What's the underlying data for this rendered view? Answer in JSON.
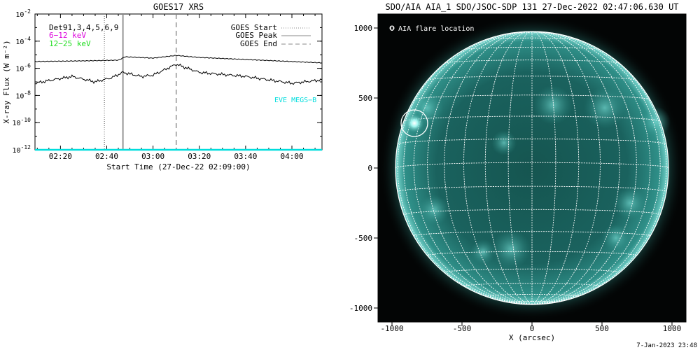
{
  "chart_data": [
    {
      "type": "line",
      "title": "GOES17 XRS",
      "xlabel": "Start Time (27-Dec-22 02:09:00)",
      "ylabel": "X-ray Flux (W m⁻²)",
      "yscale": "log",
      "ylim_exponent": [
        -12,
        -2
      ],
      "ytick_base": "10",
      "ytick_exponents": [
        "-12",
        "-10",
        "-8",
        "-6",
        "-4",
        "-2"
      ],
      "xlim": [
        "02:09",
        "04:13"
      ],
      "xticks": [
        "02:20",
        "02:40",
        "03:00",
        "03:20",
        "03:40",
        "04:00"
      ],
      "legend_left": [
        {
          "label": "Det91,3,4,5,6,9",
          "color": "#000000"
        },
        {
          "label": "6−12 keV",
          "color": "#dd00dd"
        },
        {
          "label": "12−25 keV",
          "color": "#22dd22"
        }
      ],
      "legend_right": [
        {
          "label": "GOES Start",
          "style": "dotted"
        },
        {
          "label": "GOES Peak",
          "style": "solid"
        },
        {
          "label": "GOES End",
          "style": "dashed"
        }
      ],
      "annotation": "EVE MEGS−B",
      "annotation_color": "#00dddd",
      "vlines": [
        {
          "name": "GOES Start",
          "time": "02:39",
          "style": "dotted"
        },
        {
          "name": "GOES Peak",
          "time": "02:47",
          "style": "solid"
        },
        {
          "name": "GOES End",
          "time": "03:10",
          "style": "dashed"
        }
      ],
      "series": [
        {
          "name": "long channel",
          "x": [
            "02:09",
            "02:30",
            "02:45",
            "02:48",
            "03:00",
            "03:10",
            "03:20",
            "03:40",
            "04:13"
          ],
          "log_values": [
            -5.5,
            -5.45,
            -5.4,
            -5.15,
            -5.25,
            -5.05,
            -5.2,
            -5.35,
            -5.6
          ]
        },
        {
          "name": "short channel",
          "x": [
            "02:09",
            "02:15",
            "02:25",
            "02:35",
            "02:42",
            "02:47",
            "02:55",
            "03:00",
            "03:05",
            "03:10",
            "03:20",
            "03:40",
            "04:00",
            "04:13"
          ],
          "log_values": [
            -7.1,
            -6.9,
            -6.6,
            -7.0,
            -6.7,
            -6.3,
            -6.6,
            -6.5,
            -6.1,
            -5.7,
            -6.3,
            -6.6,
            -7.1,
            -6.85
          ]
        },
        {
          "name": "baseline",
          "color": "#00dddd",
          "x": [
            "02:09",
            "04:13"
          ],
          "log_values": [
            -12,
            -12
          ]
        }
      ]
    },
    {
      "type": "image",
      "title": "SDO/AIA AIA_1 SDO/JSOC-SDP 131 27-Dec-2022 02:47:06.630 UT",
      "xlabel": "X (arcsec)",
      "xlim": [
        -1100,
        1100
      ],
      "ylim": [
        -1100,
        1100
      ],
      "xticks": [
        "-1000",
        "-500",
        "0",
        "500",
        "1000"
      ],
      "yticks": [
        "1000",
        "500",
        "0",
        "-500",
        "-1000"
      ],
      "legend": "O AIA flare location",
      "flare_location_arcsec": [
        -840,
        320
      ],
      "solar_radius_arcsec": 975,
      "grid_spacing_deg": 10,
      "disk_color": "#1e6e6a"
    }
  ],
  "footer": {
    "timestamp": "7-Jan-2023 23:48"
  }
}
